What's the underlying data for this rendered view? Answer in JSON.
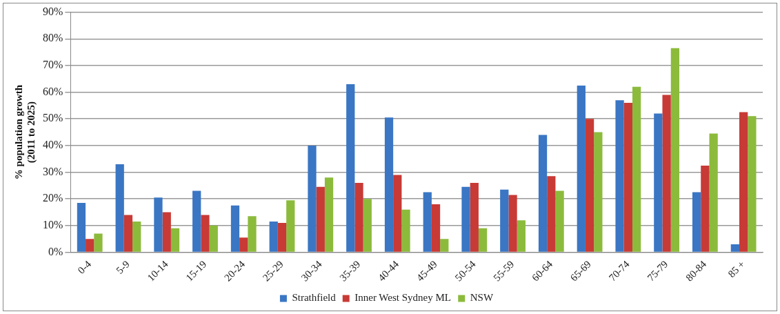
{
  "chart_data": {
    "type": "bar",
    "ylabel": "% population growth\n(2011 to 2025)",
    "categories": [
      "0-4",
      "5-9",
      "10-14",
      "15-19",
      "20-24",
      "25-29",
      "30-34",
      "35-39",
      "40-44",
      "45-49",
      "50-54",
      "55-59",
      "60-64",
      "65-69",
      "70-74",
      "75-79",
      "80-84",
      "85 +"
    ],
    "series": [
      {
        "name": "Strathfield",
        "color": "#3a76c4",
        "values": [
          18.5,
          33,
          20.5,
          23,
          17.5,
          11.5,
          40,
          63,
          50.5,
          22.5,
          24.5,
          23.5,
          44,
          62.5,
          57,
          52,
          22.5,
          3
        ]
      },
      {
        "name": "Inner West Sydney ML",
        "color": "#c83a36",
        "values": [
          5,
          14,
          15,
          14,
          5.5,
          11,
          24.5,
          26,
          29,
          18,
          26,
          21.5,
          28.5,
          50,
          56,
          59,
          32.5,
          52.5
        ]
      },
      {
        "name": "NSW",
        "color": "#8cbb3c",
        "values": [
          7,
          11.5,
          9,
          10,
          13.5,
          19.5,
          28,
          20,
          16,
          5,
          9,
          12,
          23,
          45,
          62,
          76.5,
          44.5,
          51
        ]
      }
    ],
    "ylim": [
      0,
      90
    ],
    "yticks": [
      {
        "value": 0,
        "label": "0%"
      },
      {
        "value": 10,
        "label": "10%"
      },
      {
        "value": 20,
        "label": "20%"
      },
      {
        "value": 30,
        "label": "30%"
      },
      {
        "value": 40,
        "label": "40%"
      },
      {
        "value": 50,
        "label": "50%"
      },
      {
        "value": 60,
        "label": "60%"
      },
      {
        "value": 70,
        "label": "70%"
      },
      {
        "value": 80,
        "label": "80%"
      },
      {
        "value": 90,
        "label": "90%"
      }
    ],
    "grid": "y",
    "legend": "bottom"
  }
}
